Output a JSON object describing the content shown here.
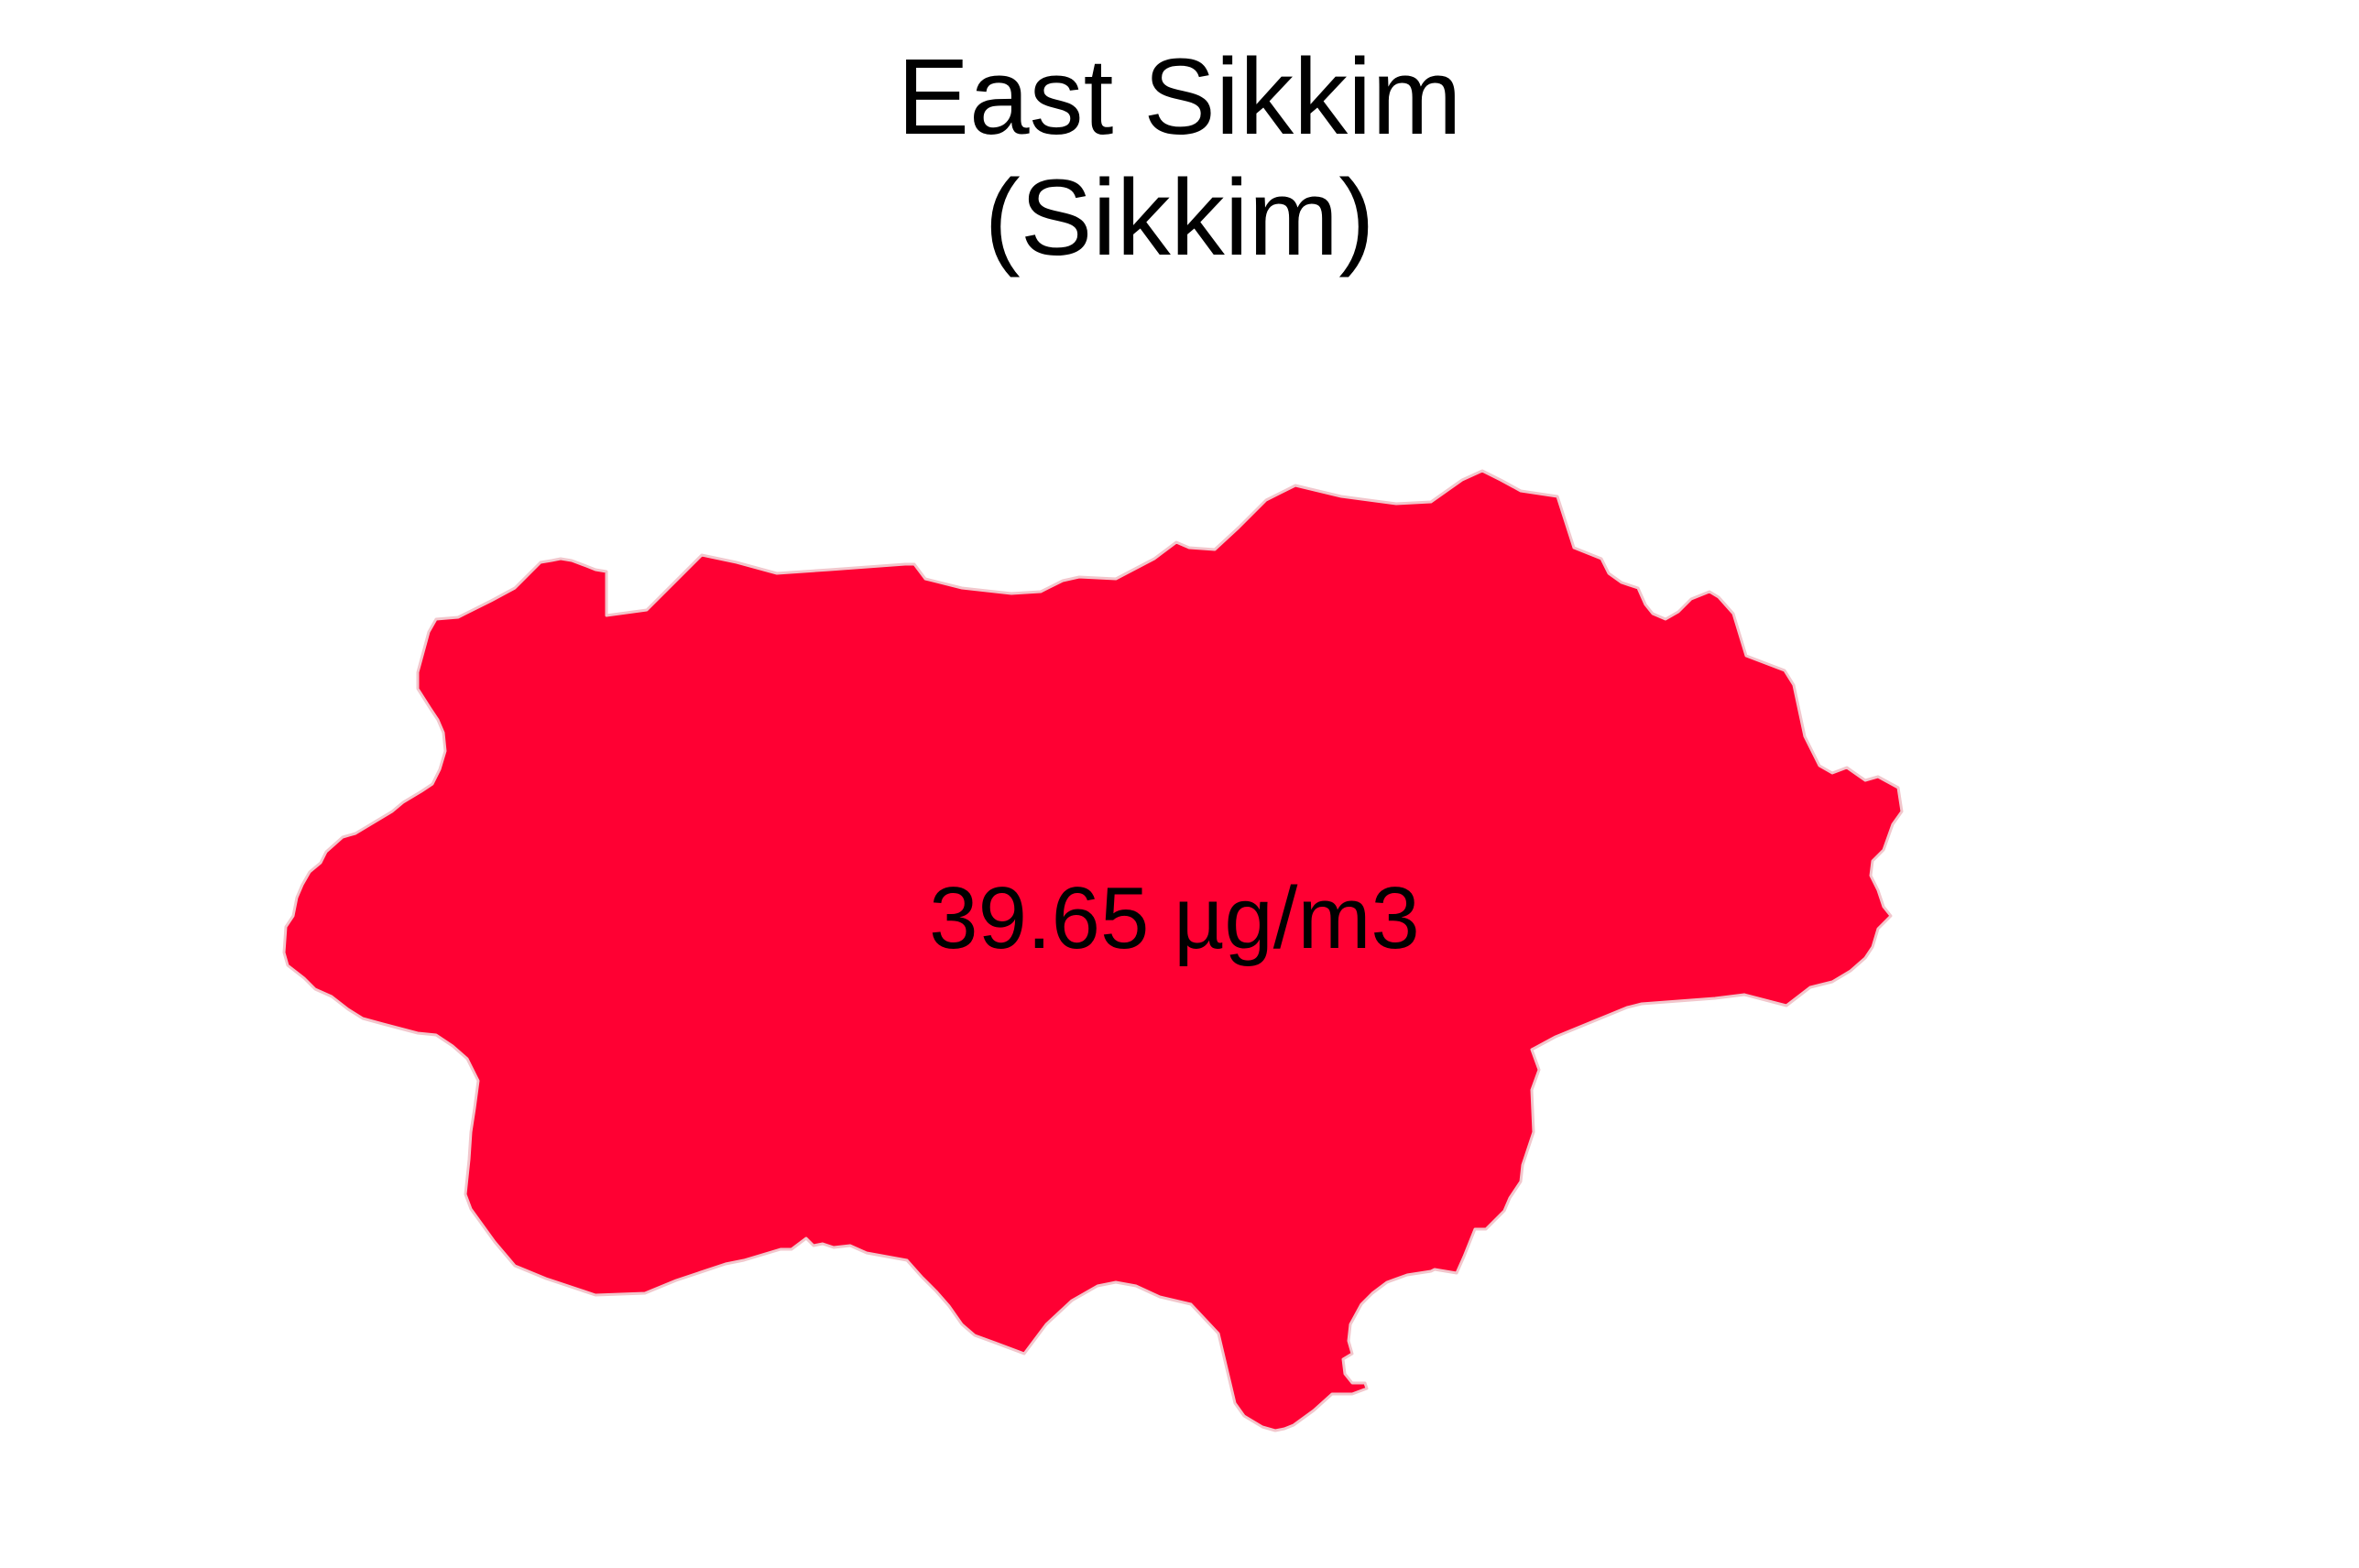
{
  "map": {
    "title_line1": "East Sikkim",
    "title_line2": "(Sikkim)",
    "value_label": "39.65 µg/m3",
    "fill_color": "#FF0033",
    "stroke_color": "#F2C6CC",
    "region_name": "East Sikkim",
    "state_name": "Sikkim",
    "value": 39.65,
    "unit": "µg/m3"
  }
}
